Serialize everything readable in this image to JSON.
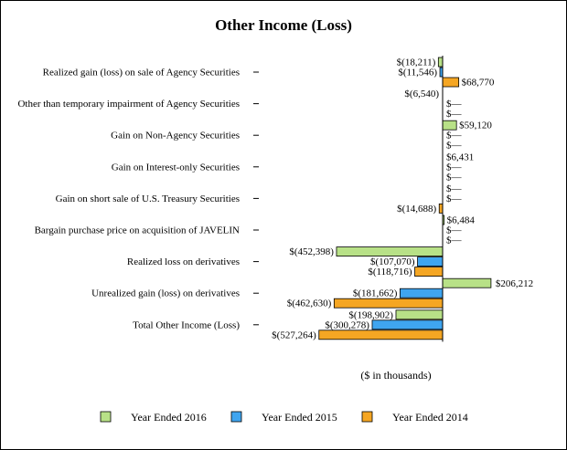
{
  "chart_data": {
    "type": "bar",
    "orientation": "horizontal",
    "title": "Other Income (Loss)",
    "xlabel": "($ in thousands)",
    "xlim": [
      -560000,
      230000
    ],
    "legend_position": "bottom",
    "categories": [
      "Realized gain (loss) on sale of Agency Securities",
      "Other than temporary impairment of Agency Securities",
      "Gain on Non-Agency Securities",
      "Gain on Interest-only Securities",
      "Gain on short sale of U.S. Treasury Securities",
      "Bargain purchase price on acquisition of JAVELIN",
      "Realized loss on derivatives",
      "Unrealized gain (loss) on derivatives",
      "Total Other Income (Loss)"
    ],
    "series": [
      {
        "name": "Year Ended 2016",
        "color": "#b8e187",
        "values": [
          -18211,
          null,
          59120,
          null,
          null,
          6484,
          -452398,
          206212,
          -198902
        ],
        "labels": [
          "$(18,211)",
          "$(6,540)",
          "$59,120",
          "$6,431",
          "$—",
          "$6,484",
          "$(452,398)",
          "",
          "$(198,902)"
        ]
      },
      {
        "name": "Year Ended 2015",
        "color": "#3fa5f0",
        "values": [
          -11546,
          0,
          0,
          0,
          0,
          0,
          -107070,
          -181662,
          -300278
        ],
        "labels": [
          "$(11,546)",
          "$—",
          "$—",
          "$—",
          "$—",
          "$—",
          "$(107,070)",
          "$(181,662)",
          "$(300,278)"
        ]
      },
      {
        "name": "Year Ended 2014",
        "color": "#f5a623",
        "values": [
          68770,
          0,
          0,
          0,
          -14688,
          0,
          -118716,
          -462630,
          -527264
        ],
        "labels": [
          "$68,770",
          "$—",
          "$—",
          "$—",
          "$(14,688)",
          "$—",
          "$(118,716)",
          "$(462,630)",
          "$(527,264)"
        ]
      }
    ],
    "extra_value_labels": [
      "$206,212"
    ]
  }
}
